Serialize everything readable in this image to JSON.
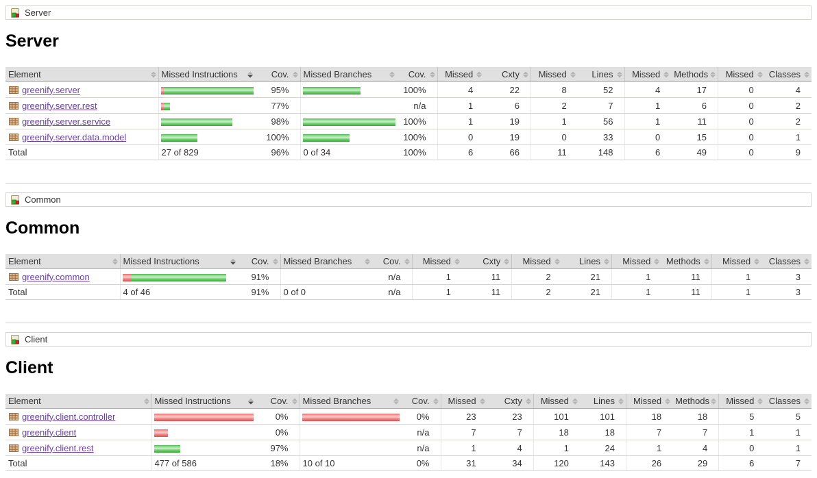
{
  "columns": {
    "element": "Element",
    "missed_instructions": "Missed Instructions",
    "cov": "Cov.",
    "missed_branches": "Missed Branches",
    "cov2": "Cov.",
    "missed": "Missed",
    "cxty": "Cxty",
    "lines": "Lines",
    "methods": "Methods",
    "classes": "Classes"
  },
  "colors": {
    "covered_green": "#37a637",
    "missed_red": "#da4f4f",
    "link_purple": "#6b3fa5",
    "header_gray": "#e0e0e0"
  },
  "sections": [
    {
      "breadcrumb": "Server",
      "heading": "Server",
      "rows": [
        {
          "name": "greenify.server",
          "instr_red": 4,
          "instr_green": 131,
          "instr_cov": "95%",
          "branch_red": 0,
          "branch_green": 84,
          "branch_cov": "100%",
          "m_cxty": "4",
          "cxty": "22",
          "m_lines": "8",
          "lines": "52",
          "m_meth": "4",
          "meth": "17",
          "m_cls": "0",
          "cls": "4"
        },
        {
          "name": "greenify.server.rest",
          "instr_red": 4,
          "instr_green": 9,
          "instr_cov": "77%",
          "branch_red": 0,
          "branch_green": 0,
          "branch_cov": "n/a",
          "m_cxty": "1",
          "cxty": "6",
          "m_lines": "2",
          "lines": "7",
          "m_meth": "1",
          "meth": "6",
          "m_cls": "0",
          "cls": "2"
        },
        {
          "name": "greenify.server.service",
          "instr_red": 0,
          "instr_green": 104,
          "instr_cov": "98%",
          "branch_red": 0,
          "branch_green": 135,
          "branch_cov": "100%",
          "m_cxty": "1",
          "cxty": "19",
          "m_lines": "1",
          "lines": "56",
          "m_meth": "1",
          "meth": "11",
          "m_cls": "0",
          "cls": "2"
        },
        {
          "name": "greenify.server.data.model",
          "instr_red": 0,
          "instr_green": 53,
          "instr_cov": "100%",
          "branch_red": 0,
          "branch_green": 68,
          "branch_cov": "100%",
          "m_cxty": "0",
          "cxty": "19",
          "m_lines": "0",
          "lines": "33",
          "m_meth": "0",
          "meth": "15",
          "m_cls": "0",
          "cls": "1"
        }
      ],
      "total": {
        "label": "Total",
        "instr": "27 of 829",
        "instr_cov": "96%",
        "branch": "0 of 34",
        "branch_cov": "100%",
        "m_cxty": "6",
        "cxty": "66",
        "m_lines": "11",
        "lines": "148",
        "m_meth": "6",
        "meth": "49",
        "m_cls": "0",
        "cls": "9"
      }
    },
    {
      "breadcrumb": "Common",
      "heading": "Common",
      "rows": [
        {
          "name": "greenify.common",
          "instr_red": 13,
          "instr_green": 138,
          "instr_cov": "91%",
          "branch_red": 0,
          "branch_green": 0,
          "branch_cov": "n/a",
          "m_cxty": "1",
          "cxty": "11",
          "m_lines": "2",
          "lines": "21",
          "m_meth": "1",
          "meth": "11",
          "m_cls": "1",
          "cls": "3"
        }
      ],
      "total": {
        "label": "Total",
        "instr": "4 of 46",
        "instr_cov": "91%",
        "branch": "0 of 0",
        "branch_cov": "n/a",
        "m_cxty": "1",
        "cxty": "11",
        "m_lines": "2",
        "lines": "21",
        "m_meth": "1",
        "meth": "11",
        "m_cls": "1",
        "cls": "3"
      }
    },
    {
      "breadcrumb": "Client",
      "heading": "Client",
      "rows": [
        {
          "name": "greenify.client.controller",
          "instr_red": 145,
          "instr_green": 0,
          "instr_cov": "0%",
          "branch_red": 142,
          "branch_green": 0,
          "branch_cov": "0%",
          "m_cxty": "23",
          "cxty": "23",
          "m_lines": "101",
          "lines": "101",
          "m_meth": "18",
          "meth": "18",
          "m_cls": "5",
          "cls": "5"
        },
        {
          "name": "greenify.client",
          "instr_red": 20,
          "instr_green": 0,
          "instr_cov": "0%",
          "branch_red": 0,
          "branch_green": 0,
          "branch_cov": "n/a",
          "m_cxty": "7",
          "cxty": "7",
          "m_lines": "18",
          "lines": "18",
          "m_meth": "7",
          "meth": "7",
          "m_cls": "1",
          "cls": "1"
        },
        {
          "name": "greenify.client.rest",
          "instr_red": 0,
          "instr_green": 38,
          "instr_cov": "97%",
          "branch_red": 0,
          "branch_green": 0,
          "branch_cov": "n/a",
          "m_cxty": "1",
          "cxty": "4",
          "m_lines": "1",
          "lines": "24",
          "m_meth": "1",
          "meth": "4",
          "m_cls": "0",
          "cls": "1"
        }
      ],
      "total": {
        "label": "Total",
        "instr": "477 of 586",
        "instr_cov": "18%",
        "branch": "10 of 10",
        "branch_cov": "0%",
        "m_cxty": "31",
        "cxty": "34",
        "m_lines": "120",
        "lines": "143",
        "m_meth": "26",
        "meth": "29",
        "m_cls": "6",
        "cls": "7"
      }
    }
  ]
}
